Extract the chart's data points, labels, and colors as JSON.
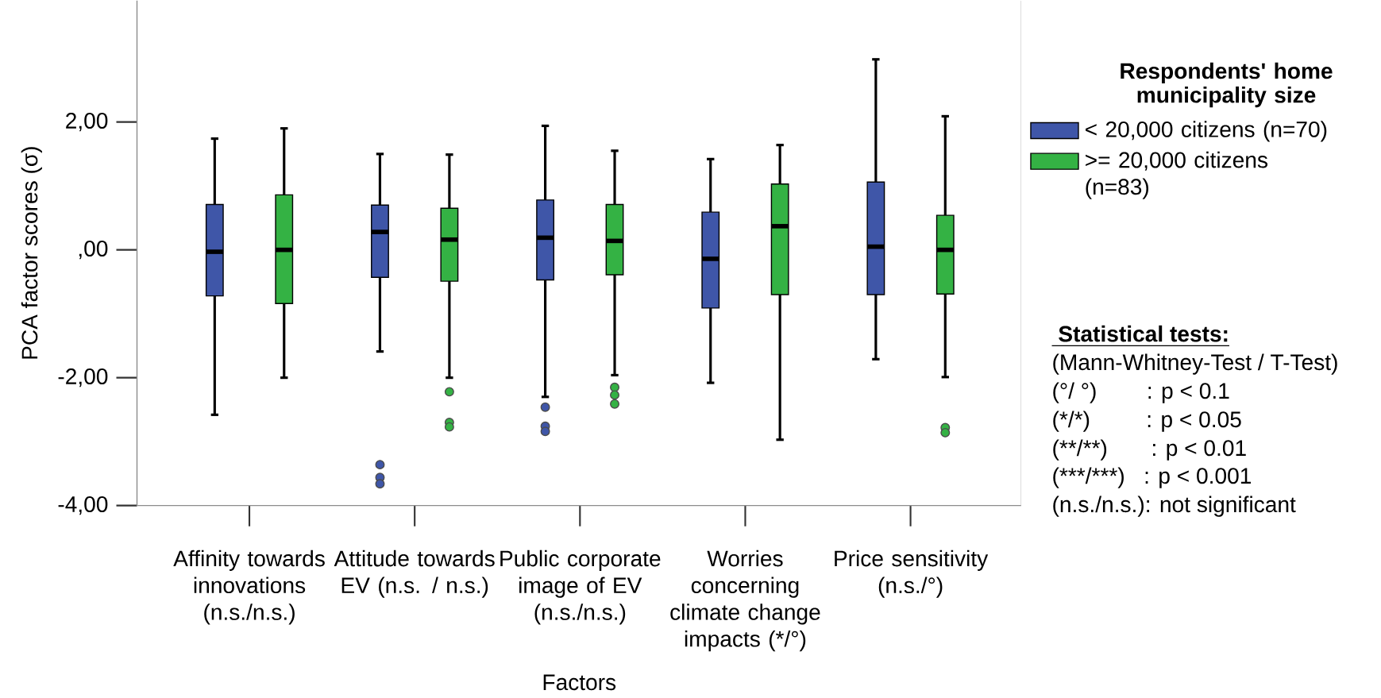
{
  "chart_data": {
    "type": "box",
    "categories": [
      "Affinity towards innovations (n.s./n.s.)",
      "Attitude towards EV (n.s. / n.s.)",
      "Public corporate image of EV (n.s./n.s.)",
      "Worries concerning climate change impacts (*/°)",
      "Price sensitivity (n.s./°)"
    ],
    "xlabel": "Factors",
    "ylabel": "PCA factor scores (σ)",
    "ylim": [
      -4,
      3.9
    ],
    "yticks": [
      {
        "value": -4,
        "label": "-4,00"
      },
      {
        "value": -2,
        "label": "-2,00"
      },
      {
        "value": 0,
        "label": ",00"
      },
      {
        "value": 2,
        "label": "2,00"
      }
    ],
    "legend": "right",
    "legend_title": "Respondents' home municipality size",
    "series": [
      {
        "name": "< 20,000 citizens (n=70)",
        "color": "#3f56a8",
        "boxes": [
          {
            "low": -2.58,
            "q1": -0.72,
            "median": -0.03,
            "q3": 0.71,
            "high": 1.74
          },
          {
            "low": -1.59,
            "q1": -0.43,
            "median": 0.28,
            "q3": 0.7,
            "high": 1.5,
            "outliers": [
              -3.36,
              -3.56,
              -3.66
            ]
          },
          {
            "low": -2.3,
            "q1": -0.47,
            "median": 0.19,
            "q3": 0.78,
            "high": 1.94,
            "outliers": [
              -2.46,
              -2.76,
              -2.84
            ]
          },
          {
            "low": -2.08,
            "q1": -0.91,
            "median": -0.14,
            "q3": 0.59,
            "high": 1.42
          },
          {
            "low": -1.71,
            "q1": -0.7,
            "median": 0.05,
            "q3": 1.06,
            "high": 2.98
          }
        ]
      },
      {
        "name": ">= 20,000 citizens (n=83)",
        "color": "#34b244",
        "boxes": [
          {
            "low": -2.0,
            "q1": -0.84,
            "median": 0.0,
            "q3": 0.86,
            "high": 1.9
          },
          {
            "low": -2.0,
            "q1": -0.49,
            "median": 0.16,
            "q3": 0.65,
            "high": 1.49,
            "outliers": [
              -2.22,
              -2.7,
              -2.77
            ]
          },
          {
            "low": -1.96,
            "q1": -0.39,
            "median": 0.14,
            "q3": 0.71,
            "high": 1.55,
            "outliers": [
              -2.15,
              -2.27,
              -2.41
            ]
          },
          {
            "low": -2.97,
            "q1": -0.7,
            "median": 0.37,
            "q3": 1.03,
            "high": 1.64
          },
          {
            "low": -1.99,
            "q1": -0.69,
            "median": 0.0,
            "q3": 0.54,
            "high": 2.09,
            "outliers": [
              -2.78,
              -2.86
            ]
          }
        ]
      }
    ],
    "annotations": [
      "Statistical tests:",
      "(Mann-Whitney-Test / T-Test)",
      "(°/ °)        : p < 0.1",
      "(*/*)         : p < 0.05",
      "(**/**)       : p < 0.01",
      "(***/***)   : p < 0.001",
      "(n.s./n.s.): not significant"
    ]
  }
}
